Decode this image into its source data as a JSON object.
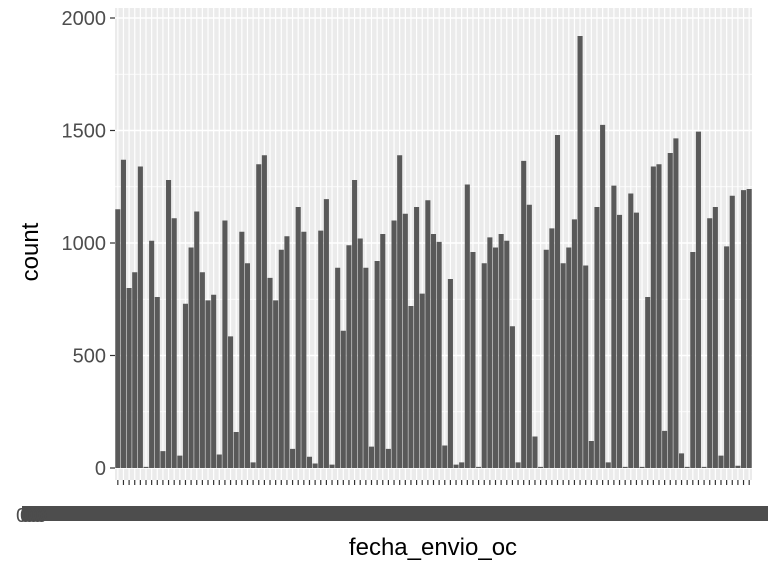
{
  "chart_data": {
    "type": "bar",
    "title": "",
    "xlabel": "fecha_envio_oc",
    "ylabel": "count",
    "ylim": [
      0,
      2000
    ],
    "yticks": [
      "0",
      "500",
      "1000",
      "1500",
      "2000"
    ],
    "y_tick_values": [
      0,
      500,
      1000,
      1500,
      2000
    ],
    "grid": true,
    "panel_color": "#ebebeb",
    "bar_color": "#595959",
    "x_tick_label_fragment": "0",
    "values": [
      1150,
      1370,
      800,
      870,
      1340,
      5,
      1010,
      760,
      75,
      1280,
      1110,
      55,
      730,
      980,
      1140,
      870,
      745,
      770,
      60,
      1100,
      585,
      160,
      1050,
      910,
      25,
      1350,
      1390,
      845,
      745,
      970,
      1030,
      85,
      1160,
      1050,
      50,
      20,
      1055,
      1195,
      15,
      890,
      610,
      990,
      1280,
      1020,
      890,
      95,
      920,
      1040,
      85,
      1100,
      1390,
      1130,
      720,
      1160,
      775,
      1190,
      1040,
      1005,
      100,
      840,
      15,
      25,
      1260,
      960,
      5,
      910,
      1025,
      980,
      1040,
      1010,
      630,
      25,
      1365,
      1170,
      140,
      5,
      970,
      1065,
      1480,
      910,
      980,
      1105,
      1920,
      900,
      120,
      1160,
      1525,
      25,
      1255,
      1125,
      5,
      1220,
      1135,
      5,
      760,
      1340,
      1350,
      165,
      1400,
      1465,
      65,
      5,
      960,
      1495,
      5,
      1110,
      1160,
      55,
      985,
      1210,
      10,
      1235,
      1240
    ]
  }
}
